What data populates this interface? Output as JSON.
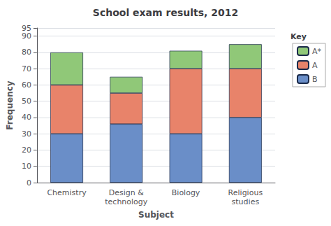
{
  "chart_data": {
    "type": "bar",
    "title": "School exam results, 2012",
    "xlabel": "Subject",
    "ylabel": "Frequency",
    "categories": [
      "Chemistry",
      "Design &\ntechnology",
      "Biology",
      "Religious\nstudies"
    ],
    "series": [
      {
        "name": "B",
        "color": "#6a8ec8",
        "values": [
          30,
          36,
          30,
          40
        ]
      },
      {
        "name": "A",
        "color": "#e8836a",
        "values": [
          30,
          19,
          40,
          30
        ]
      },
      {
        "name": "A*",
        "color": "#90c878",
        "values": [
          20,
          10,
          11,
          15
        ]
      }
    ],
    "stacked": true,
    "ylim": [
      0,
      95
    ],
    "yticks": [
      0,
      10,
      20,
      30,
      40,
      50,
      60,
      70,
      80,
      90
    ],
    "grid": true,
    "legend": "upper right",
    "legend_title": "Key"
  }
}
